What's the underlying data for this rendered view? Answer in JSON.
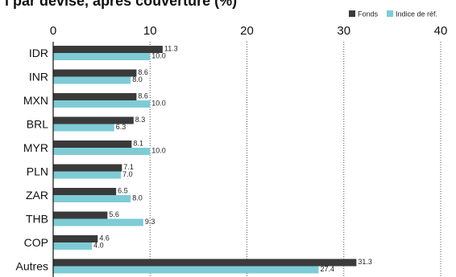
{
  "chart_data": {
    "type": "bar",
    "orientation": "horizontal",
    "title": "l par devise, après couverture (%)",
    "categories": [
      "IDR",
      "INR",
      "MXN",
      "BRL",
      "MYR",
      "PLN",
      "ZAR",
      "THB",
      "COP",
      "Autres"
    ],
    "series": [
      {
        "name": "Fonds",
        "color": "#3a3a3a",
        "values": [
          11.3,
          8.6,
          8.6,
          8.3,
          8.1,
          7.1,
          6.5,
          5.6,
          4.6,
          31.3
        ]
      },
      {
        "name": "Indice de réf.",
        "color": "#7ecbd6",
        "values": [
          10.0,
          8.0,
          10.0,
          6.3,
          10.0,
          7.0,
          8.0,
          9.3,
          4.0,
          27.4
        ]
      }
    ],
    "xlim": [
      0,
      40
    ],
    "xticks": [
      0,
      10,
      20,
      30,
      40
    ],
    "grid": "vertical dotted",
    "legend_position": "top-right"
  }
}
